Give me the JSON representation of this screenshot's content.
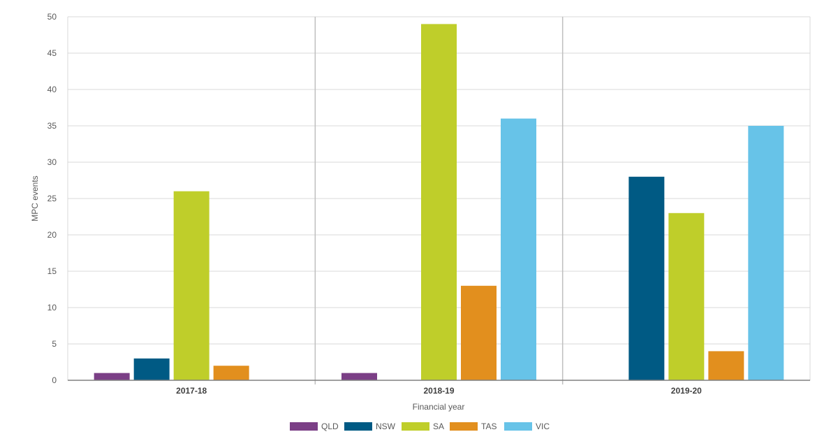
{
  "chart_data": {
    "type": "bar",
    "categories": [
      "2017-18",
      "2018-19",
      "2019-20"
    ],
    "series": [
      {
        "name": "QLD",
        "color": "#7B3F86",
        "values": [
          1,
          1,
          0
        ]
      },
      {
        "name": "NSW",
        "color": "#005A84",
        "values": [
          3,
          0,
          28
        ]
      },
      {
        "name": "SA",
        "color": "#BFCE2A",
        "values": [
          26,
          49,
          23
        ]
      },
      {
        "name": "TAS",
        "color": "#E28F1E",
        "values": [
          2,
          13,
          4
        ]
      },
      {
        "name": "VIC",
        "color": "#67C3E8",
        "values": [
          0,
          36,
          35
        ]
      }
    ],
    "xlabel": "Financial year",
    "ylabel": "MPC events",
    "ylim": [
      0,
      50
    ],
    "yticks": [
      0,
      5,
      10,
      15,
      20,
      25,
      30,
      35,
      40,
      45,
      50
    ],
    "grid": true,
    "legend_position": "bottom-center"
  }
}
